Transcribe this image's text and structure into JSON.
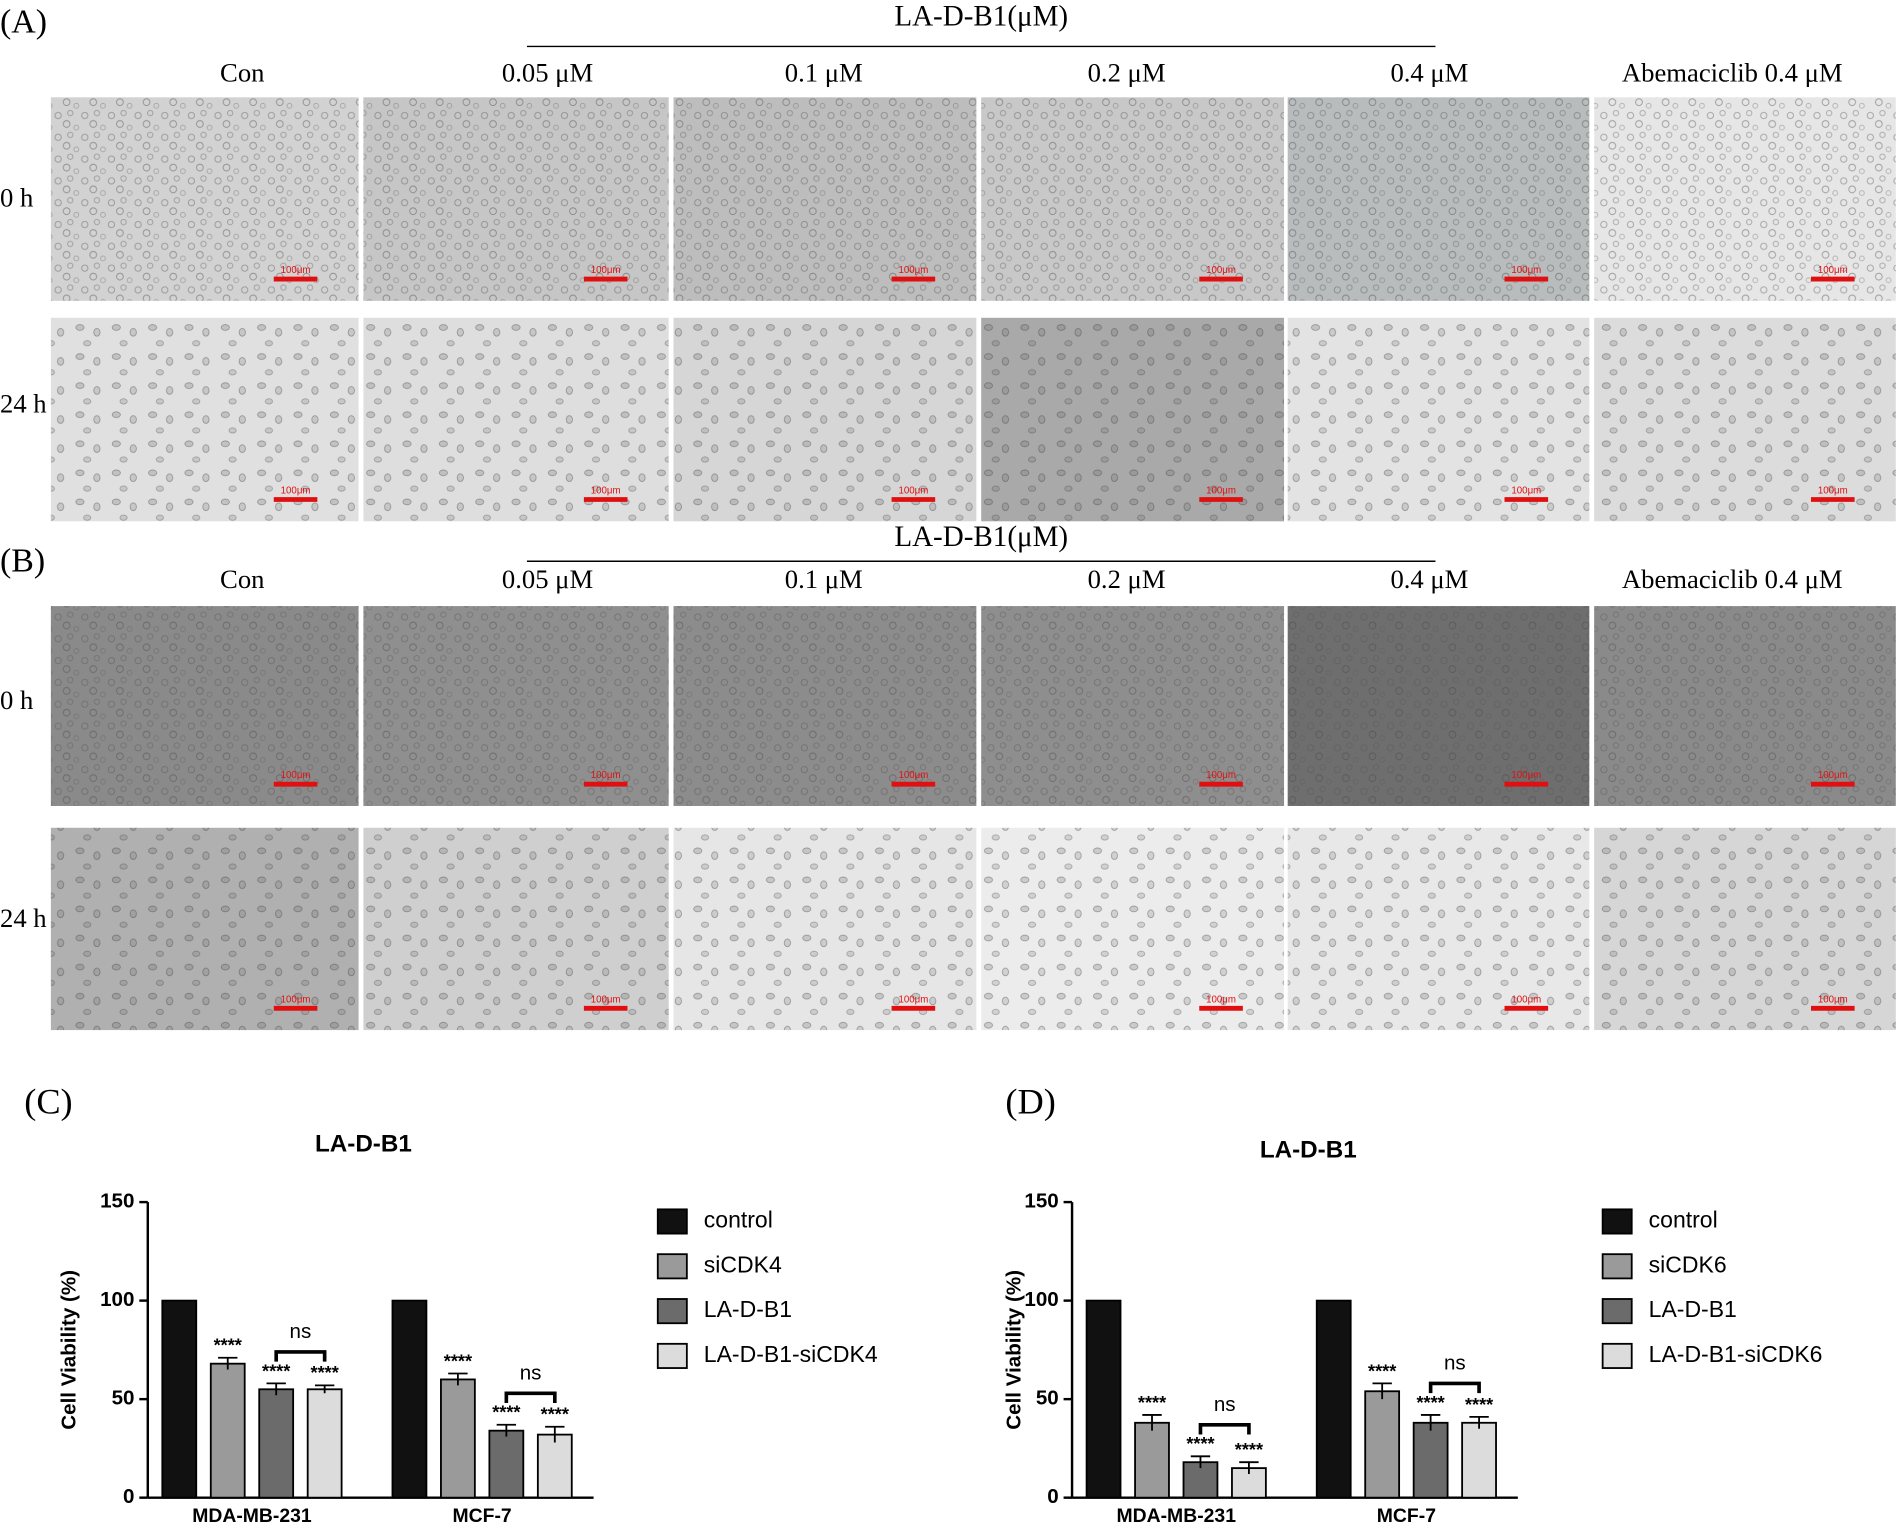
{
  "panels": [
    {
      "label": "(A)",
      "treatment": "LA-D-B1(μM)",
      "columns": [
        "Con",
        "0.05 μM",
        "0.1 μM",
        "0.2 μM",
        "0.4 μM",
        "Abemaciclib 0.4 μM"
      ],
      "rows": [
        "0 h",
        "24 h"
      ],
      "scale_bar": "100μm"
    },
    {
      "label": "(B)",
      "treatment": "LA-D-B1(μM)",
      "columns": [
        "Con",
        "0.05 μM",
        "0.1 μM",
        "0.2 μM",
        "0.4 μM",
        "Abemaciclib 0.4 μM"
      ],
      "rows": [
        "0 h",
        "24 h"
      ],
      "scale_bar": "100μm"
    }
  ],
  "chart_data": [
    {
      "type": "bar",
      "panel_label": "(C)",
      "title": "LA-D-B1",
      "ylabel": "Cell Viability (%)",
      "categories": [
        "MDA-MB-231",
        "MCF-7"
      ],
      "ylim": [
        0,
        150
      ],
      "yticks": [
        0,
        50,
        100,
        150
      ],
      "legend": "right",
      "bracket_labels": [
        "ns",
        "ns"
      ],
      "series": [
        {
          "name": "control",
          "color": "#111111",
          "values": [
            100,
            100
          ]
        },
        {
          "name": "siCDK4",
          "color": "#9a9a9a",
          "values": [
            68,
            60
          ],
          "errors": [
            3,
            3
          ],
          "significance": [
            "****",
            "****"
          ]
        },
        {
          "name": "LA-D-B1",
          "color": "#6b6b6b",
          "values": [
            55,
            34
          ],
          "errors": [
            3,
            3
          ],
          "significance": [
            "****",
            "****"
          ]
        },
        {
          "name": "LA-D-B1-siCDK4",
          "color": "#dcdcdc",
          "values": [
            55,
            32
          ],
          "errors": [
            2,
            4
          ],
          "significance": [
            "****",
            "****"
          ]
        }
      ]
    },
    {
      "type": "bar",
      "panel_label": "(D)",
      "title": "LA-D-B1",
      "ylabel": "Cell Viability (%)",
      "categories": [
        "MDA-MB-231",
        "MCF-7"
      ],
      "ylim": [
        0,
        150
      ],
      "yticks": [
        0,
        50,
        100,
        150
      ],
      "legend": "right",
      "bracket_labels": [
        "ns",
        "ns"
      ],
      "series": [
        {
          "name": "control",
          "color": "#111111",
          "values": [
            100,
            100
          ]
        },
        {
          "name": "siCDK6",
          "color": "#9a9a9a",
          "values": [
            38,
            54
          ],
          "errors": [
            4,
            4
          ],
          "significance": [
            "****",
            "****"
          ]
        },
        {
          "name": "LA-D-B1",
          "color": "#6b6b6b",
          "values": [
            18,
            38
          ],
          "errors": [
            3,
            4
          ],
          "significance": [
            "****",
            "****"
          ]
        },
        {
          "name": "LA-D-B1-siCDK6",
          "color": "#dcdcdc",
          "values": [
            15,
            38
          ],
          "errors": [
            3,
            3
          ],
          "significance": [
            "****",
            "****"
          ]
        }
      ]
    }
  ]
}
